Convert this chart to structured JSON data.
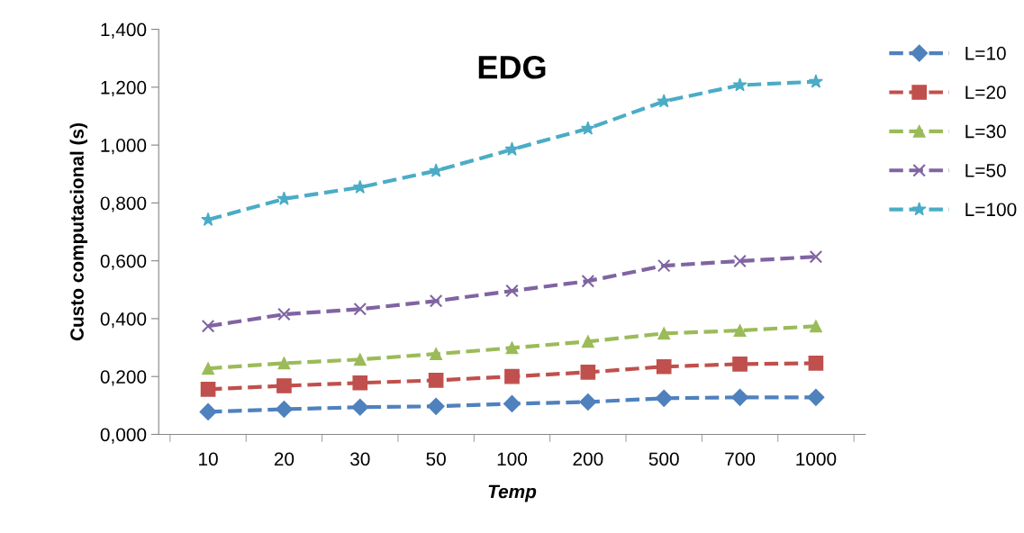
{
  "chart_data": {
    "type": "line",
    "title": "EDG",
    "xlabel": "Temp",
    "ylabel": "Custo computacional (s)",
    "categories": [
      "10",
      "20",
      "30",
      "50",
      "100",
      "200",
      "500",
      "700",
      "1000"
    ],
    "ylim": [
      0,
      1.4
    ],
    "yticks": [
      {
        "value": 0,
        "label": "0,000"
      },
      {
        "value": 0.2,
        "label": "0,200"
      },
      {
        "value": 0.4,
        "label": "0,400"
      },
      {
        "value": 0.6,
        "label": "0,600"
      },
      {
        "value": 0.8,
        "label": "0,800"
      },
      {
        "value": 1.0,
        "label": "1,000"
      },
      {
        "value": 1.2,
        "label": "1,200"
      },
      {
        "value": 1.4,
        "label": "1,400"
      }
    ],
    "grid": false,
    "legend": "right",
    "line_style": "dashed",
    "series": [
      {
        "name": "L=10",
        "color": "#4f81bd",
        "marker": "diamond",
        "values": [
          0.078,
          0.087,
          0.094,
          0.097,
          0.106,
          0.112,
          0.125,
          0.128,
          0.128
        ]
      },
      {
        "name": "L=20",
        "color": "#c0504d",
        "marker": "square",
        "values": [
          0.156,
          0.168,
          0.178,
          0.187,
          0.2,
          0.215,
          0.234,
          0.243,
          0.246
        ]
      },
      {
        "name": "L=30",
        "color": "#9bbb59",
        "marker": "triangle",
        "values": [
          0.228,
          0.246,
          0.259,
          0.278,
          0.299,
          0.321,
          0.349,
          0.359,
          0.374
        ]
      },
      {
        "name": "L=50",
        "color": "#8064a2",
        "marker": "cross",
        "values": [
          0.374,
          0.415,
          0.433,
          0.461,
          0.496,
          0.53,
          0.583,
          0.599,
          0.614
        ]
      },
      {
        "name": "L=100",
        "color": "#4bacc6",
        "marker": "star",
        "values": [
          0.742,
          0.814,
          0.854,
          0.911,
          0.985,
          1.057,
          1.151,
          1.207,
          1.219
        ]
      }
    ]
  }
}
